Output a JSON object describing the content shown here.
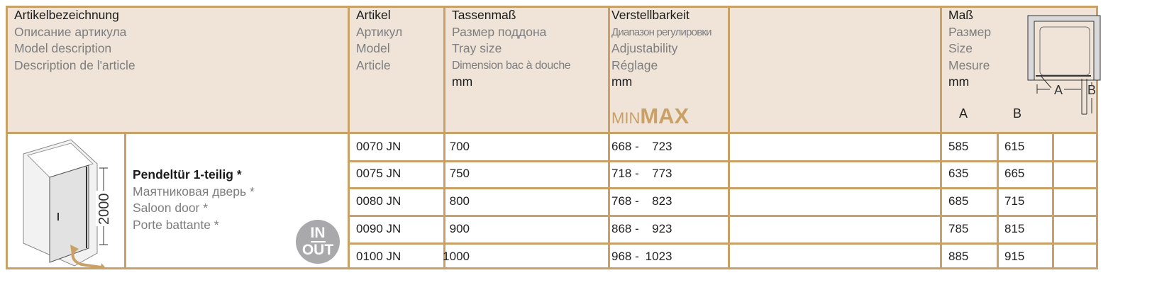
{
  "header": {
    "description": [
      "Artikelbezeichnung",
      "Описание артикула",
      "Model description",
      "Description de l'article"
    ],
    "article": [
      "Artikel",
      "Артикул",
      "Model",
      "Article"
    ],
    "tray": [
      "Tassenmaß",
      "Размер поддона",
      "Tray size",
      "Dimension bac à douche",
      "mm"
    ],
    "adjust": [
      "Verstellbarkeit",
      "Диапазон регулировки",
      "Adjustability",
      "Réglage",
      "mm"
    ],
    "minmax": {
      "min": "MIN",
      "max": "MAX"
    },
    "size": [
      "Maß",
      "Размер",
      "Size",
      "Mesure",
      "mm"
    ],
    "col_a": "A",
    "col_b": "B",
    "diagram_labels": {
      "a": "A",
      "b": "B"
    }
  },
  "product": {
    "names": [
      "Pendeltür 1-teilig *",
      "Маятниковая дверь *",
      "Saloon door *",
      "Porte battante *"
    ],
    "height_label": "2000",
    "badge": {
      "top": "IN",
      "bottom": "OUT"
    }
  },
  "rows": [
    {
      "article": "0070 JN",
      "tray": "700",
      "min": "668",
      "max": "723",
      "a": "585",
      "b": "615"
    },
    {
      "article": "0075 JN",
      "tray": "750",
      "min": "718",
      "max": "773",
      "a": "635",
      "b": "665"
    },
    {
      "article": "0080 JN",
      "tray": "800",
      "min": "768",
      "max": "823",
      "a": "685",
      "b": "715"
    },
    {
      "article": "0090 JN",
      "tray": "900",
      "min": "868",
      "max": "923",
      "a": "785",
      "b": "815"
    },
    {
      "article": "0100 JN",
      "tray": "1000",
      "min": "968",
      "max": "1023",
      "a": "885",
      "b": "915"
    }
  ],
  "colors": {
    "border": "#c9a066",
    "header_bg": "#efe4d7",
    "accent": "#c9a066",
    "secondary_text": "#7e7e80"
  }
}
